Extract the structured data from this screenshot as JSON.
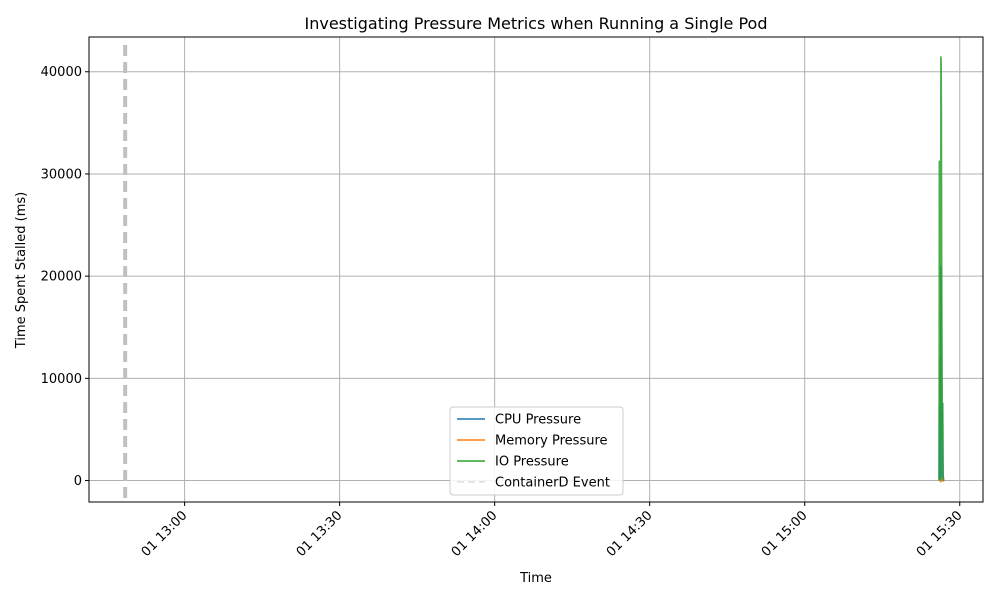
{
  "chart_data": {
    "type": "line",
    "title": "Investigating Pressure Metrics when Running a Single Pod",
    "xlabel": "Time",
    "ylabel": "Time Spent Stalled (ms)",
    "x_tick_labels": [
      "01 13:00",
      "01 13:30",
      "01 14:00",
      "01 14:30",
      "01 15:00",
      "01 15:30"
    ],
    "x_ticks_min": [
      780,
      810,
      840,
      870,
      900,
      930
    ],
    "xlim_min": [
      761.5,
      934.5
    ],
    "y_ticks": [
      0,
      10000,
      20000,
      30000,
      40000
    ],
    "ylim": [
      -2100,
      43400
    ],
    "grid": true,
    "legend_position": "lower center",
    "series": [
      {
        "name": "CPU Pressure",
        "color": "#1f77b4",
        "x_min": [
          926.0,
          926.05,
          926.1,
          926.15,
          926.2,
          926.25,
          926.3,
          926.35,
          926.4,
          926.45,
          926.5,
          926.55,
          926.6,
          926.65,
          926.7,
          926.75,
          926.8,
          926.9,
          927.0
        ],
        "values": [
          0,
          7200,
          500,
          0,
          12000,
          3000,
          0,
          21000,
          0,
          5000,
          0,
          1500,
          0,
          0,
          7600,
          500,
          0,
          0,
          0
        ]
      },
      {
        "name": "Memory Pressure",
        "color": "#ff7f0e",
        "x_min": [
          926.0,
          926.1,
          926.2,
          926.3,
          926.4,
          926.5,
          926.6,
          926.7,
          926.8,
          926.9,
          927.0
        ],
        "values": [
          0,
          0,
          150,
          0,
          200,
          0,
          100,
          0,
          0,
          0,
          0
        ]
      },
      {
        "name": "IO Pressure",
        "color": "#2ca02c",
        "x_min": [
          926.0,
          926.05,
          926.1,
          926.15,
          926.2,
          926.25,
          926.3,
          926.35,
          926.4,
          926.45,
          926.5,
          926.55,
          926.6,
          926.65,
          926.7,
          926.75,
          926.8,
          926.9,
          927.0
        ],
        "values": [
          0,
          31300,
          8000,
          0,
          20500,
          17500,
          0,
          41500,
          41000,
          36000,
          22000,
          15000,
          9000,
          4000,
          7600,
          2000,
          500,
          0,
          0
        ]
      }
    ],
    "events": {
      "name": "ContainerD Event",
      "color": "#c0c0c0",
      "x_min": [
        768.5
      ]
    }
  }
}
